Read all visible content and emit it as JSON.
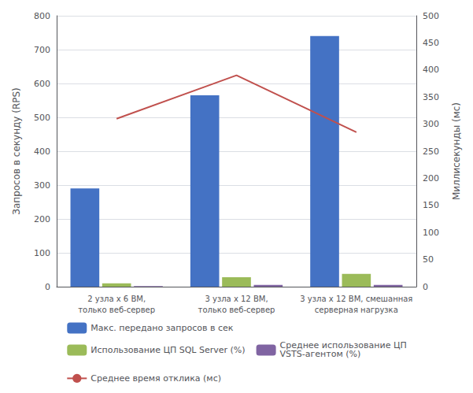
{
  "chart_data": {
    "type": "bar",
    "categories": [
      "2 узла x 6 ВМ,\nтолько веб-сервер",
      "3 узла x 12 ВМ,\nтолько веб-сервер",
      "3 узла x 12 ВМ, смешанная\nсерверная нагрузка"
    ],
    "series": [
      {
        "name": "Макс. передано запросов в сек",
        "color": "#4472C4",
        "values": [
          290,
          565,
          740
        ]
      },
      {
        "name": "Использование ЦП SQL Server (%)",
        "color": "#9BBB59",
        "values": [
          10,
          28,
          38
        ]
      },
      {
        "name": "Среднее использование ЦП\nVSTS-агентом (%)",
        "color": "#8064A2",
        "values": [
          2,
          5,
          5
        ]
      },
      {
        "name": "Среднее время отклика (мс)",
        "color": "#C0504D",
        "values": [
          310,
          390,
          285
        ],
        "type": "line",
        "axis": "y2"
      }
    ],
    "ylabel": "Запросов в секунду (RPS)",
    "y2label": "Миллисекунды (мс)",
    "ylim": [
      0,
      800
    ],
    "yticks": [
      0,
      100,
      200,
      300,
      400,
      500,
      600,
      700,
      800
    ],
    "y2lim": [
      0,
      500
    ],
    "y2ticks": [
      0,
      50,
      100,
      150,
      200,
      250,
      300,
      350,
      400,
      450,
      500
    ],
    "grid": true,
    "legend": "bottom"
  }
}
